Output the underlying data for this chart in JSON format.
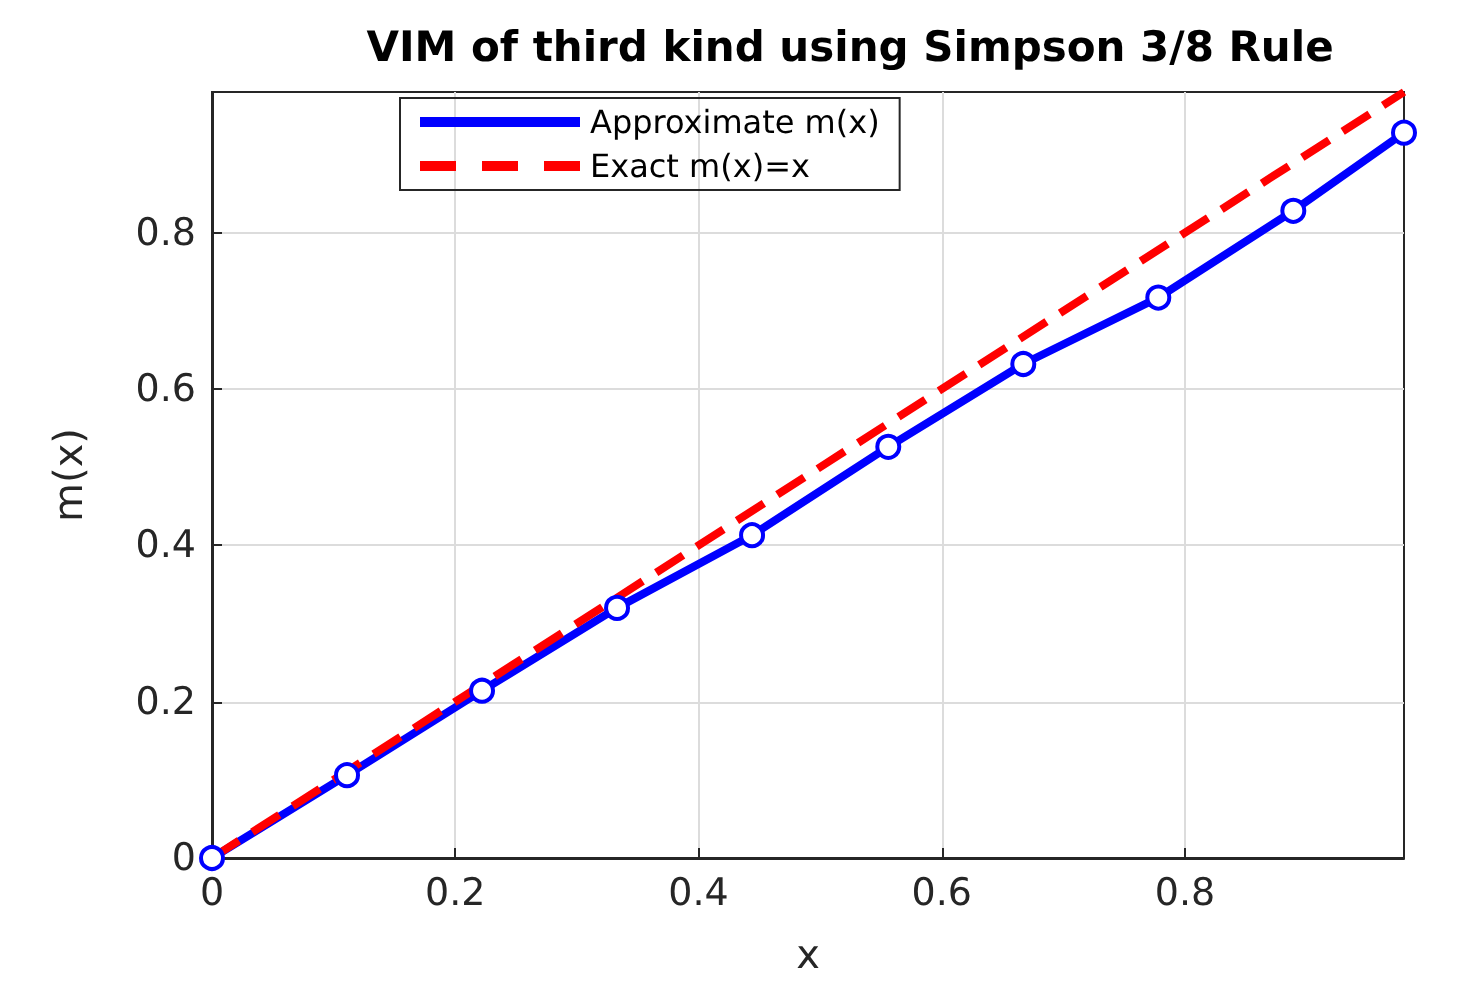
{
  "chart_data": {
    "type": "line",
    "title": "VIM of third kind using Simpson 3/8 Rule",
    "xlabel": "x",
    "ylabel": "m(x)",
    "xlim": [
      0,
      0.98
    ],
    "ylim": [
      0,
      0.98
    ],
    "xticks": [
      0,
      0.2,
      0.4,
      0.6,
      0.8
    ],
    "yticks": [
      0,
      0.2,
      0.4,
      0.6,
      0.8
    ],
    "grid": true,
    "legend": "top",
    "series": [
      {
        "name": "Approximate m(x)",
        "color": "#0000ff",
        "marker": "circle",
        "line_style": "solid",
        "x": [
          0,
          0.111,
          0.222,
          0.333,
          0.444,
          0.556,
          0.667,
          0.778,
          0.889,
          0.98
        ],
        "values": [
          0,
          0.106,
          0.214,
          0.32,
          0.413,
          0.526,
          0.632,
          0.717,
          0.828,
          0.928
        ]
      },
      {
        "name": "Exact m(x)=x",
        "color": "#ff0000",
        "marker": "none",
        "line_style": "dashed",
        "x": [
          0,
          0.98
        ],
        "values": [
          0,
          0.98
        ]
      }
    ]
  }
}
